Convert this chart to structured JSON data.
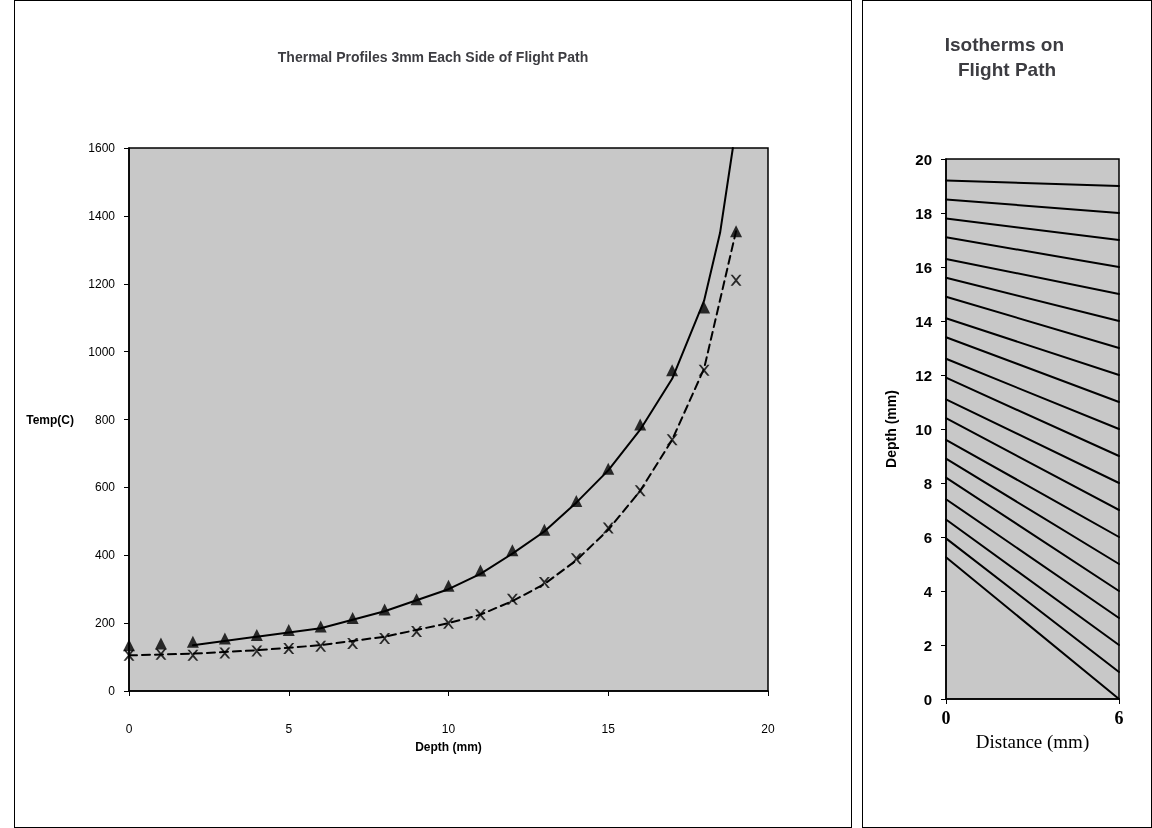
{
  "chart_data": [
    {
      "type": "line",
      "title": "Thermal Profiles 3mm Each Side of Flight Path",
      "xlabel": "Depth (mm)",
      "ylabel": "Temp(C)",
      "xlim": [
        0,
        20
      ],
      "xticks": [
        0,
        5,
        10,
        15,
        20
      ],
      "ylim": [
        0,
        1600
      ],
      "yticks": [
        0,
        200,
        400,
        600,
        800,
        1000,
        1200,
        1400,
        1600
      ],
      "grid": false,
      "series": [
        {
          "type": "scatter",
          "color": "#000000",
          "marker": "triangle",
          "x": [
            0,
            1,
            2,
            3,
            4,
            5,
            6,
            7,
            8,
            9,
            10,
            11,
            12,
            13,
            14,
            15,
            16,
            17,
            18,
            19
          ],
          "values": [
            135,
            140,
            145,
            155,
            165,
            180,
            190,
            215,
            240,
            270,
            310,
            355,
            415,
            475,
            560,
            655,
            785,
            945,
            1130,
            1355
          ]
        },
        {
          "type": "scatter",
          "color": "#000000",
          "marker": "cross",
          "x": [
            0,
            1,
            2,
            3,
            4,
            5,
            6,
            7,
            8,
            9,
            10,
            11,
            12,
            13,
            14,
            15,
            16,
            17,
            18,
            19
          ],
          "values": [
            105,
            108,
            105,
            112,
            118,
            125,
            132,
            140,
            155,
            175,
            200,
            225,
            270,
            320,
            390,
            480,
            590,
            740,
            945,
            1210
          ]
        },
        {
          "type": "line",
          "color": "#000000",
          "marker": "none",
          "line_style": "solid",
          "x": [
            2,
            4,
            6,
            8,
            10,
            11,
            12,
            13,
            14,
            15,
            16,
            17,
            18,
            18.5,
            18.9
          ],
          "values": [
            135,
            160,
            185,
            235,
            300,
            345,
            405,
            470,
            555,
            650,
            770,
            920,
            1150,
            1350,
            1600
          ]
        },
        {
          "type": "line",
          "color": "#000000",
          "marker": "none",
          "line_style": "dashed",
          "x": [
            0,
            2,
            4,
            6,
            8,
            10,
            11,
            12,
            13,
            14,
            15,
            16,
            17,
            18,
            19
          ],
          "values": [
            105,
            110,
            120,
            135,
            160,
            200,
            225,
            265,
            315,
            385,
            475,
            590,
            740,
            950,
            1355
          ]
        }
      ]
    },
    {
      "type": "line",
      "title": "Isotherms on Flight Path",
      "xlabel": "Distance (mm)",
      "ylabel": "Depth (mm)",
      "xlim": [
        0,
        6
      ],
      "xticks": [
        0,
        6
      ],
      "ylim": [
        0,
        20
      ],
      "yticks": [
        0,
        2,
        4,
        6,
        8,
        10,
        12,
        14,
        16,
        18,
        20
      ],
      "grid": false,
      "marker": "none",
      "line_style": "solid",
      "x": [
        0,
        6
      ],
      "series": [
        {
          "color": "#000000",
          "values": [
            5.25,
            0
          ]
        },
        {
          "color": "#000000",
          "values": [
            5.95,
            1
          ]
        },
        {
          "color": "#000000",
          "values": [
            6.65,
            2
          ]
        },
        {
          "color": "#000000",
          "values": [
            7.4,
            3
          ]
        },
        {
          "color": "#000000",
          "values": [
            8.2,
            4
          ]
        },
        {
          "color": "#000000",
          "values": [
            8.9,
            5
          ]
        },
        {
          "color": "#000000",
          "values": [
            9.6,
            6
          ]
        },
        {
          "color": "#000000",
          "values": [
            10.4,
            7
          ]
        },
        {
          "color": "#000000",
          "values": [
            11.1,
            8
          ]
        },
        {
          "color": "#000000",
          "values": [
            11.9,
            9
          ]
        },
        {
          "color": "#000000",
          "values": [
            12.6,
            10
          ]
        },
        {
          "color": "#000000",
          "values": [
            13.4,
            11
          ]
        },
        {
          "color": "#000000",
          "values": [
            14.1,
            12
          ]
        },
        {
          "color": "#000000",
          "values": [
            14.9,
            13
          ]
        },
        {
          "color": "#000000",
          "values": [
            15.6,
            14
          ]
        },
        {
          "color": "#000000",
          "values": [
            16.3,
            15
          ]
        },
        {
          "color": "#000000",
          "values": [
            17.1,
            16
          ]
        },
        {
          "color": "#000000",
          "values": [
            17.8,
            17
          ]
        },
        {
          "color": "#000000",
          "values": [
            18.5,
            18
          ]
        },
        {
          "color": "#000000",
          "values": [
            19.2,
            19
          ]
        }
      ]
    }
  ]
}
